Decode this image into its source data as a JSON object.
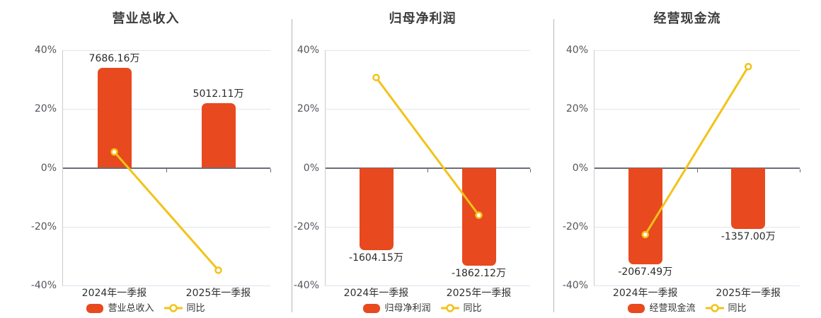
{
  "chart_data": [
    {
      "type": "bar",
      "title": "营业总收入",
      "categories": [
        "2024年一季报",
        "2025年一季报"
      ],
      "ylim": [
        -40,
        40
      ],
      "grid": true,
      "legend_position": "bottom",
      "ytick_labels": [
        "40%",
        "20%",
        "0%",
        "-20%",
        "-40%"
      ],
      "ytick_values": [
        40,
        20,
        0,
        -20,
        -40
      ],
      "series": [
        {
          "name": "营业总收入",
          "type": "bar",
          "value_labels": [
            "7686.16万",
            "5012.11万"
          ],
          "display_pct": [
            34.0,
            22.1
          ]
        },
        {
          "name": "同比",
          "type": "line",
          "values_pct": [
            5.4,
            -34.8
          ]
        }
      ]
    },
    {
      "type": "bar",
      "title": "归母净利润",
      "categories": [
        "2024年一季报",
        "2025年一季报"
      ],
      "ylim": [
        -40,
        40
      ],
      "grid": true,
      "legend_position": "bottom",
      "ytick_labels": [
        "40%",
        "20%",
        "0%",
        "-20%",
        "-40%"
      ],
      "ytick_values": [
        40,
        20,
        0,
        -20,
        -40
      ],
      "series": [
        {
          "name": "归母净利润",
          "type": "bar",
          "value_labels": [
            "-1604.15万",
            "-1862.12万"
          ],
          "display_pct": [
            -27.9,
            -33.2
          ]
        },
        {
          "name": "同比",
          "type": "line",
          "values_pct": [
            30.7,
            -16.1
          ]
        }
      ]
    },
    {
      "type": "bar",
      "title": "经营现金流",
      "categories": [
        "2024年一季报",
        "2025年一季报"
      ],
      "ylim": [
        -40,
        40
      ],
      "grid": true,
      "legend_position": "bottom",
      "ytick_labels": [
        "40%",
        "20%",
        "0%",
        "-20%",
        "-40%"
      ],
      "ytick_values": [
        40,
        20,
        0,
        -20,
        -40
      ],
      "series": [
        {
          "name": "经营现金流",
          "type": "bar",
          "value_labels": [
            "-2067.49万",
            "-1357.00万"
          ],
          "display_pct": [
            -32.9,
            -20.8
          ]
        },
        {
          "name": "同比",
          "type": "line",
          "values_pct": [
            -22.7,
            34.4
          ]
        }
      ]
    }
  ],
  "colors": {
    "bar": "#e8491f",
    "line": "#f2c318",
    "marker_fill": "#ffffff",
    "grid": "#dfe4ee",
    "zero_line": "#6b6d76",
    "axis_line": "#cccccc",
    "divider": "#b9b6b1",
    "title_text": "#3c3c3c",
    "tick_text": "#54555c",
    "category_text": "#2f2f2f",
    "value_text": "#2b2b2b",
    "legend_text": "#333333",
    "background": "#ffffff"
  }
}
